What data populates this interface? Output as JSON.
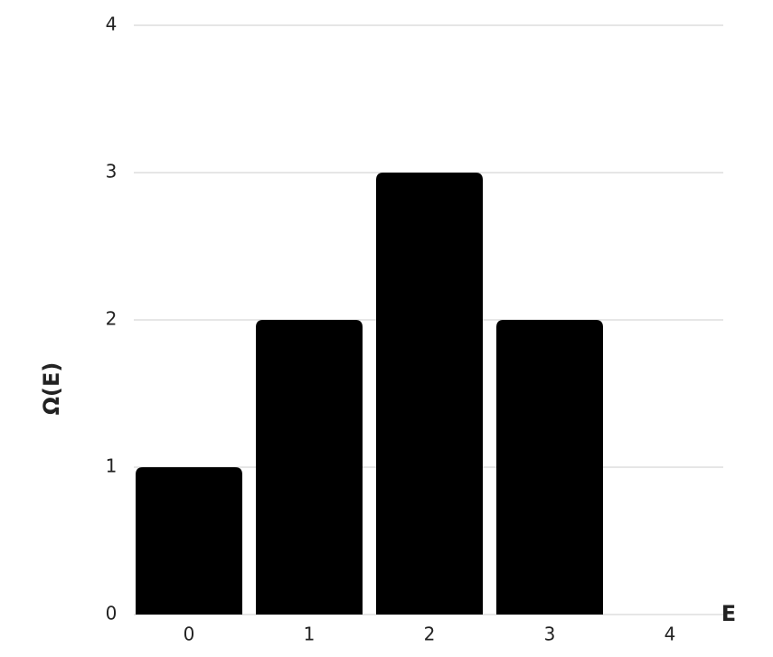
{
  "chart_data": {
    "type": "bar",
    "x_label": "E",
    "y_label": "Ω(E)",
    "categories": [
      "0",
      "1",
      "2",
      "3",
      "4"
    ],
    "values": [
      1,
      2,
      3,
      2,
      0
    ],
    "color": "#000000",
    "ylim": [
      0,
      4
    ],
    "yticks": [
      0,
      1,
      2,
      3,
      4
    ],
    "grid": true
  }
}
